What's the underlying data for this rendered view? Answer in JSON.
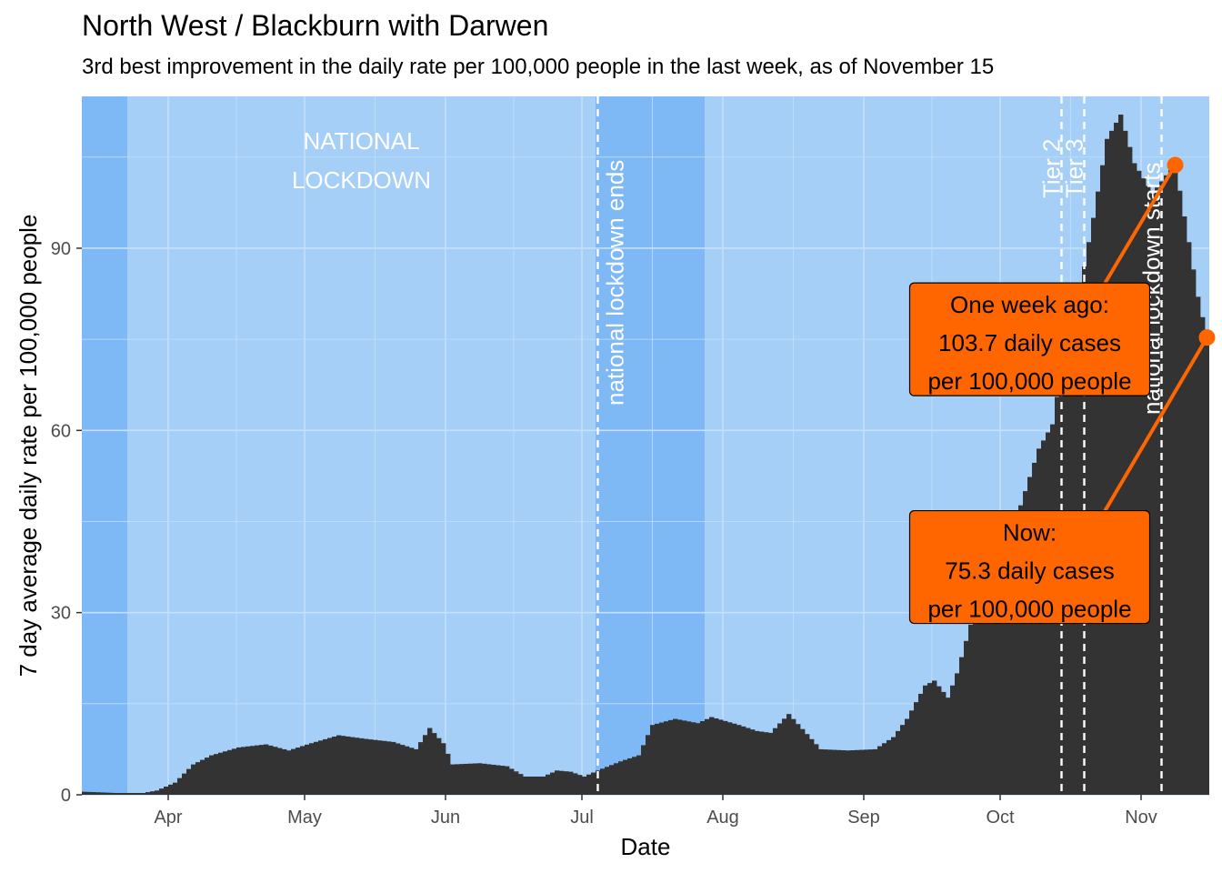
{
  "chart_data": {
    "type": "bar",
    "title": "North West / Blackburn with Darwen",
    "subtitle": "3rd best improvement in the daily rate per 100,000 people in the last week, as of November 15",
    "xlabel": "Date",
    "ylabel": "7 day average daily rate per 100,000 people",
    "x_start": "2020-03-13",
    "x_end": "2020-11-15",
    "ylim": [
      0,
      115
    ],
    "y_ticks": [
      0,
      30,
      60,
      90
    ],
    "y_tick_labels": [
      "0",
      "30",
      "60",
      "90"
    ],
    "x_ticks": [
      {
        "date": "2020-04-01",
        "label": "Apr"
      },
      {
        "date": "2020-05-01",
        "label": "May"
      },
      {
        "date": "2020-06-01",
        "label": "Jun"
      },
      {
        "date": "2020-07-01",
        "label": "Jul"
      },
      {
        "date": "2020-08-01",
        "label": "Aug"
      },
      {
        "date": "2020-09-01",
        "label": "Sep"
      },
      {
        "date": "2020-10-01",
        "label": "Oct"
      },
      {
        "date": "2020-11-01",
        "label": "Nov"
      }
    ],
    "shaded_regions": [
      {
        "start": "2020-03-13",
        "end": "2020-03-23",
        "color": "#7fb9f5"
      },
      {
        "start": "2020-03-23",
        "end": "2020-07-04",
        "color": "#a5cff7"
      },
      {
        "start": "2020-07-04",
        "end": "2020-07-28",
        "color": "#7fb9f5"
      },
      {
        "start": "2020-07-28",
        "end": "2020-11-15",
        "color": "#a5cff7"
      }
    ],
    "region_label": [
      "NATIONAL",
      "LOCKDOWN"
    ],
    "vlines": [
      {
        "date": "2020-07-04",
        "label": "national lockdown ends"
      },
      {
        "date": "2020-10-14",
        "label": "Tier 2"
      },
      {
        "date": "2020-10-19",
        "label": "Tier 3"
      },
      {
        "date": "2020-11-05",
        "label": "national lockdown starts"
      }
    ],
    "keypoints": [
      [
        "2020-03-13",
        0.5
      ],
      [
        "2020-03-20",
        0.3
      ],
      [
        "2020-03-26",
        0.3
      ],
      [
        "2020-03-29",
        0.7
      ],
      [
        "2020-04-02",
        2.0
      ],
      [
        "2020-04-06",
        5.0
      ],
      [
        "2020-04-10",
        6.5
      ],
      [
        "2020-04-16",
        7.8
      ],
      [
        "2020-04-22",
        8.3
      ],
      [
        "2020-04-27",
        7.3
      ],
      [
        "2020-05-02",
        8.5
      ],
      [
        "2020-05-08",
        9.8
      ],
      [
        "2020-05-14",
        9.2
      ],
      [
        "2020-05-20",
        8.7
      ],
      [
        "2020-05-25",
        7.5
      ],
      [
        "2020-05-28",
        11.0
      ],
      [
        "2020-05-31",
        8.5
      ],
      [
        "2020-06-02",
        5.0
      ],
      [
        "2020-06-08",
        5.2
      ],
      [
        "2020-06-14",
        4.7
      ],
      [
        "2020-06-18",
        3.0
      ],
      [
        "2020-06-22",
        3.0
      ],
      [
        "2020-06-25",
        4.0
      ],
      [
        "2020-06-28",
        3.8
      ],
      [
        "2020-07-01",
        3.0
      ],
      [
        "2020-07-04",
        4.0
      ],
      [
        "2020-07-09",
        5.5
      ],
      [
        "2020-07-13",
        6.5
      ],
      [
        "2020-07-16",
        11.5
      ],
      [
        "2020-07-21",
        12.5
      ],
      [
        "2020-07-26",
        11.8
      ],
      [
        "2020-07-29",
        12.8
      ],
      [
        "2020-08-04",
        11.5
      ],
      [
        "2020-08-08",
        10.5
      ],
      [
        "2020-08-11",
        10.2
      ],
      [
        "2020-08-15",
        13.3
      ],
      [
        "2020-08-19",
        10.0
      ],
      [
        "2020-08-22",
        7.5
      ],
      [
        "2020-08-28",
        7.3
      ],
      [
        "2020-09-03",
        7.5
      ],
      [
        "2020-09-07",
        9.5
      ],
      [
        "2020-09-10",
        12.5
      ],
      [
        "2020-09-14",
        18.0
      ],
      [
        "2020-09-16",
        18.8
      ],
      [
        "2020-09-19",
        16.0
      ],
      [
        "2020-09-21",
        20.0
      ],
      [
        "2020-09-24",
        28.0
      ],
      [
        "2020-09-27",
        33.0
      ],
      [
        "2020-09-30",
        35.0
      ],
      [
        "2020-10-03",
        43.0
      ],
      [
        "2020-10-06",
        50.0
      ],
      [
        "2020-10-09",
        57.0
      ],
      [
        "2020-10-12",
        61.0
      ],
      [
        "2020-10-14",
        70.0
      ],
      [
        "2020-10-18",
        83.0
      ],
      [
        "2020-10-21",
        95.0
      ],
      [
        "2020-10-24",
        108.0
      ],
      [
        "2020-10-27",
        112.0
      ],
      [
        "2020-10-30",
        104.0
      ],
      [
        "2020-11-03",
        99.0
      ],
      [
        "2020-11-06",
        102.0
      ],
      [
        "2020-11-08",
        103.7
      ],
      [
        "2020-11-11",
        91.0
      ],
      [
        "2020-11-13",
        82.0
      ],
      [
        "2020-11-15",
        75.3
      ]
    ],
    "annotations": [
      {
        "name": "one-week-ago",
        "date": "2020-11-08",
        "value": 103.7,
        "lines": [
          "One week ago:",
          "103.7 daily cases",
          "per 100,000 people"
        ],
        "box_date": "2020-09-24",
        "box_value": 75
      },
      {
        "name": "now",
        "date": "2020-11-15",
        "value": 75.3,
        "lines": [
          "Now:",
          "75.3 daily cases",
          "per 100,000 people"
        ],
        "box_date": "2020-09-24",
        "box_value": 37.5
      }
    ],
    "colors": {
      "bars": "#333333",
      "highlight": "#ff6600",
      "shade_light": "#a5cff7",
      "shade_dark": "#7fb9f5",
      "grid": "#c4e0fa"
    }
  }
}
